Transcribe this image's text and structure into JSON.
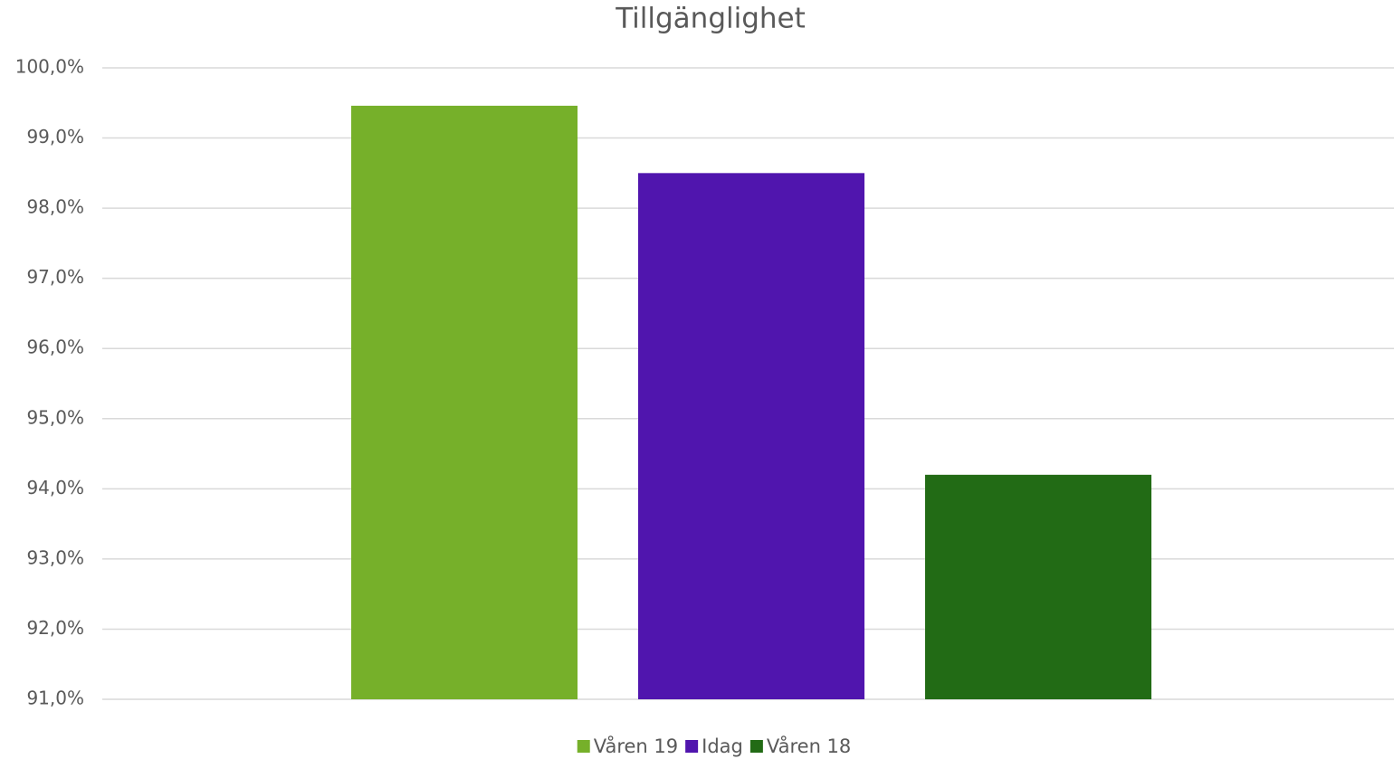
{
  "chart_data": {
    "type": "bar",
    "title": "Tillgänglighet",
    "categories": [
      null
    ],
    "series": [
      {
        "name": "Våren 19",
        "color": "#76b02a",
        "values": [
          99.46
        ]
      },
      {
        "name": "Idag",
        "color": "#5015ae",
        "values": [
          98.5
        ]
      },
      {
        "name": "Våren 18",
        "color": "#226b15",
        "values": [
          94.2
        ]
      }
    ],
    "ylim": [
      91,
      100
    ],
    "yticks": [
      {
        "value": 91,
        "label": "91,0%"
      },
      {
        "value": 92,
        "label": "92,0%"
      },
      {
        "value": 93,
        "label": "93,0%"
      },
      {
        "value": 94,
        "label": "94,0%"
      },
      {
        "value": 95,
        "label": "95,0%"
      },
      {
        "value": 96,
        "label": "96,0%"
      },
      {
        "value": 97,
        "label": "97,0%"
      },
      {
        "value": 98,
        "label": "98,0%"
      },
      {
        "value": 99,
        "label": "99,0%"
      },
      {
        "value": 100,
        "label": "100,0%"
      }
    ],
    "grid": true,
    "legend": "bottom"
  }
}
